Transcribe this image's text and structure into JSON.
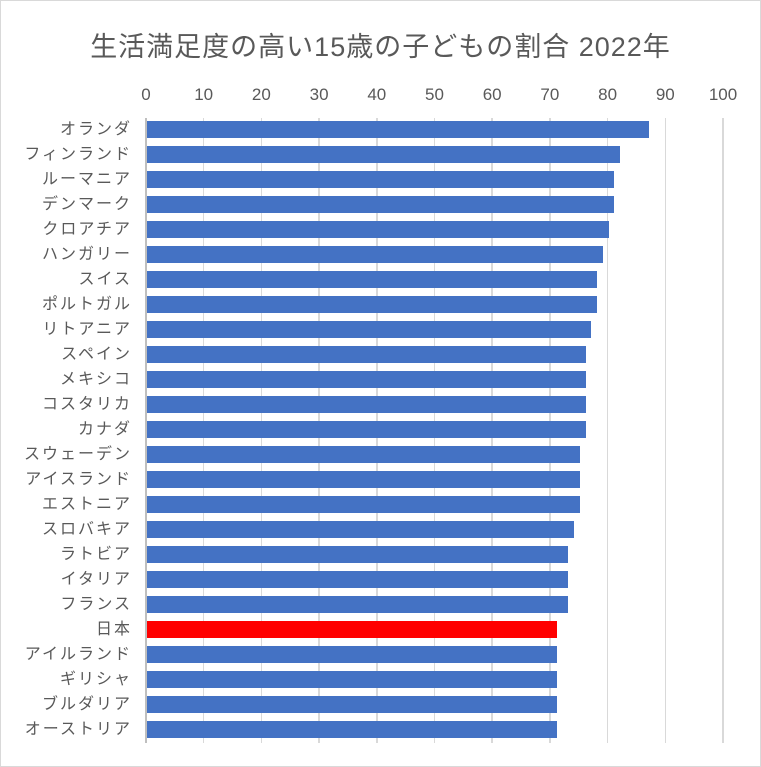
{
  "chart_data": {
    "type": "bar",
    "orientation": "horizontal",
    "title": "生活満足度の高い15歳の子どもの割合 2022年",
    "categories": [
      "オランダ",
      "フィンランド",
      "ルーマニア",
      "デンマーク",
      "クロアチア",
      "ハンガリー",
      "スイス",
      "ポルトガル",
      "リトアニア",
      "スペイン",
      "メキシコ",
      "コスタリカ",
      "カナダ",
      "スウェーデン",
      "アイスランド",
      "エストニア",
      "スロバキア",
      "ラトビア",
      "イタリア",
      "フランス",
      "日本",
      "アイルランド",
      "ギリシャ",
      "ブルダリア",
      "オーストリア"
    ],
    "values": [
      87,
      82,
      81,
      81,
      80,
      79,
      78,
      78,
      77,
      76,
      76,
      76,
      76,
      75,
      75,
      75,
      74,
      73,
      73,
      73,
      71,
      71,
      71,
      71,
      71
    ],
    "highlight_category": "日本",
    "xlim": [
      0,
      100
    ],
    "x_ticks": [
      0,
      10,
      20,
      30,
      40,
      50,
      60,
      70,
      80,
      90,
      100
    ],
    "xlabel": "",
    "ylabel": "",
    "grid": true,
    "legend": "none",
    "colors": {
      "bar": "#4472C4",
      "highlight": "#FF0000",
      "text": "#595959",
      "gridline": "#D9D9D9",
      "axis_line": "#BFBFBF",
      "frame_border": "#D9D9D9",
      "background": "#FFFFFF"
    }
  }
}
